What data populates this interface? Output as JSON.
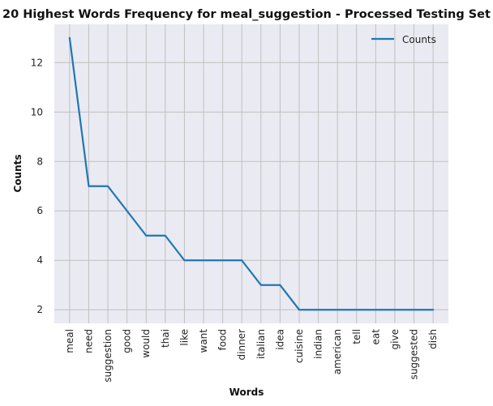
{
  "chart_data": {
    "type": "line",
    "title": "20 Highest Words Frequency for meal_suggestion - Processed Testing Set",
    "xlabel": "Words",
    "ylabel": "Counts",
    "categories": [
      "meal",
      "need",
      "suggestion",
      "good",
      "would",
      "thai",
      "like",
      "want",
      "food",
      "dinner",
      "italian",
      "idea",
      "cuisine",
      "indian",
      "american",
      "tell",
      "eat",
      "give",
      "suggested",
      "dish"
    ],
    "series": [
      {
        "name": "Counts",
        "values": [
          13,
          7,
          7,
          6,
          5,
          5,
          4,
          4,
          4,
          4,
          3,
          3,
          2,
          2,
          2,
          2,
          2,
          2,
          2,
          2
        ]
      }
    ],
    "ylim": [
      1.45,
      13.55
    ],
    "yticks": [
      2,
      4,
      6,
      8,
      10,
      12
    ],
    "grid": true,
    "legend_position": "top-right",
    "colors": {
      "line": "#1f77b4",
      "plot_background": "#eaeaf2",
      "grid": "#c0c0c0"
    }
  }
}
